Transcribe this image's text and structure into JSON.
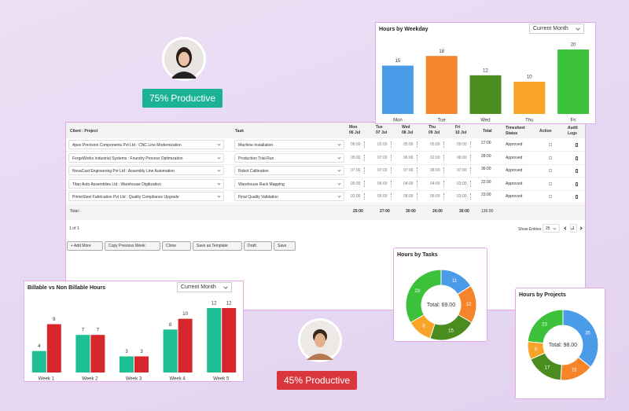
{
  "badges": [
    {
      "text": "75% Productive"
    },
    {
      "text": "45% Productive"
    }
  ],
  "timesheet": {
    "headers": {
      "project": "Client : Project",
      "task": "Task",
      "total": "Total",
      "status": "Timesheet Status",
      "action": "Action",
      "audit": "Audit Logs"
    },
    "days": [
      {
        "day": "Mon",
        "date": "06 Jul"
      },
      {
        "day": "Tue",
        "date": "07 Jul"
      },
      {
        "day": "Wed",
        "date": "08 Jul"
      },
      {
        "day": "Thu",
        "date": "09 Jul"
      },
      {
        "day": "Fri",
        "date": "10 Jul"
      }
    ],
    "rows": [
      {
        "project": "Apex Precision Components Pvt Ltd : CNC Line Modernization",
        "task": "Machine Installation",
        "hours": [
          "06:00",
          "02:00",
          "05:00",
          "05:00",
          "09:00"
        ],
        "total": "27:00",
        "status": "Approved"
      },
      {
        "project": "ForgeWorks Industrial Systems : Foundry Process Optimization",
        "task": "Production Trial Run",
        "hours": [
          "05:00",
          "07:00",
          "06:00",
          "02:00",
          "08:00"
        ],
        "total": "28:00",
        "status": "Approved"
      },
      {
        "project": "NovaCast Engineering Pvt Ltd : Assembly Line Automation",
        "task": "Robot Calibration",
        "hours": [
          "07:00",
          "07:00",
          "07:00",
          "08:00",
          "07:00"
        ],
        "total": "36:00",
        "status": "Approved"
      },
      {
        "project": "Titan Auto Assemblies Ltd : Warehouse Digitization",
        "task": "Warehouse Rack Mapping",
        "hours": [
          "05:00",
          "06:00",
          "04:00",
          "04:00",
          "03:00"
        ],
        "total": "22:00",
        "status": "Approved"
      },
      {
        "project": "PrimeSteel Fabrication Pvt Ltd : Quality Compliance Upgrade",
        "task": "Final Quality Validation",
        "hours": [
          "02:00",
          "05:00",
          "08:00",
          "05:00",
          "03:00"
        ],
        "total": "23:00",
        "status": "Approved"
      }
    ],
    "totals": {
      "label": "Total :",
      "hours": [
        "25:00",
        "27:00",
        "30:00",
        "24:00",
        "30:00"
      ],
      "total": "136:00"
    },
    "pagination": "1 of 1",
    "show_entries": "Show Entries",
    "entries": "25",
    "page": "1",
    "buttons": [
      "+ Add More",
      "Copy Previous Week",
      "Clone",
      "Save as Template",
      "Draft",
      "Save"
    ]
  },
  "chart_data": [
    {
      "type": "bar",
      "title": "Hours by Weekday",
      "filter": "Current Month",
      "categories": [
        "Mon",
        "Tue",
        "Wed",
        "Thu",
        "Fri"
      ],
      "values": [
        15,
        18,
        12,
        10,
        20
      ],
      "colors": [
        "#4a9be8",
        "#f5842a",
        "#4a8c1e",
        "#f7a428",
        "#3cc13b"
      ]
    },
    {
      "type": "bar",
      "title": "Billable vs Non Billable Hours",
      "filter": "Current Month",
      "categories": [
        "Week 1",
        "Week 2",
        "Week 3",
        "Week 4",
        "Week 5"
      ],
      "series": [
        {
          "color": "#1fbf95",
          "values": [
            4,
            7,
            3,
            8,
            12
          ]
        },
        {
          "color": "#d8262d",
          "values": [
            9,
            7,
            3,
            10,
            12
          ]
        }
      ]
    },
    {
      "type": "donut",
      "title": "Hours by Tasks",
      "center_label": "Total: 69.00",
      "values": [
        11,
        12,
        15,
        8,
        23
      ],
      "colors": [
        "#4a9be8",
        "#f5842a",
        "#4a8c1e",
        "#f7a428",
        "#3cc13b"
      ]
    },
    {
      "type": "donut",
      "title": "Hours by Projects",
      "center_label": "Total: 98.00",
      "values": [
        35,
        15,
        17,
        8,
        23
      ],
      "colors": [
        "#4a9be8",
        "#f5842a",
        "#4a8c1e",
        "#f7a428",
        "#3cc13b"
      ]
    }
  ]
}
